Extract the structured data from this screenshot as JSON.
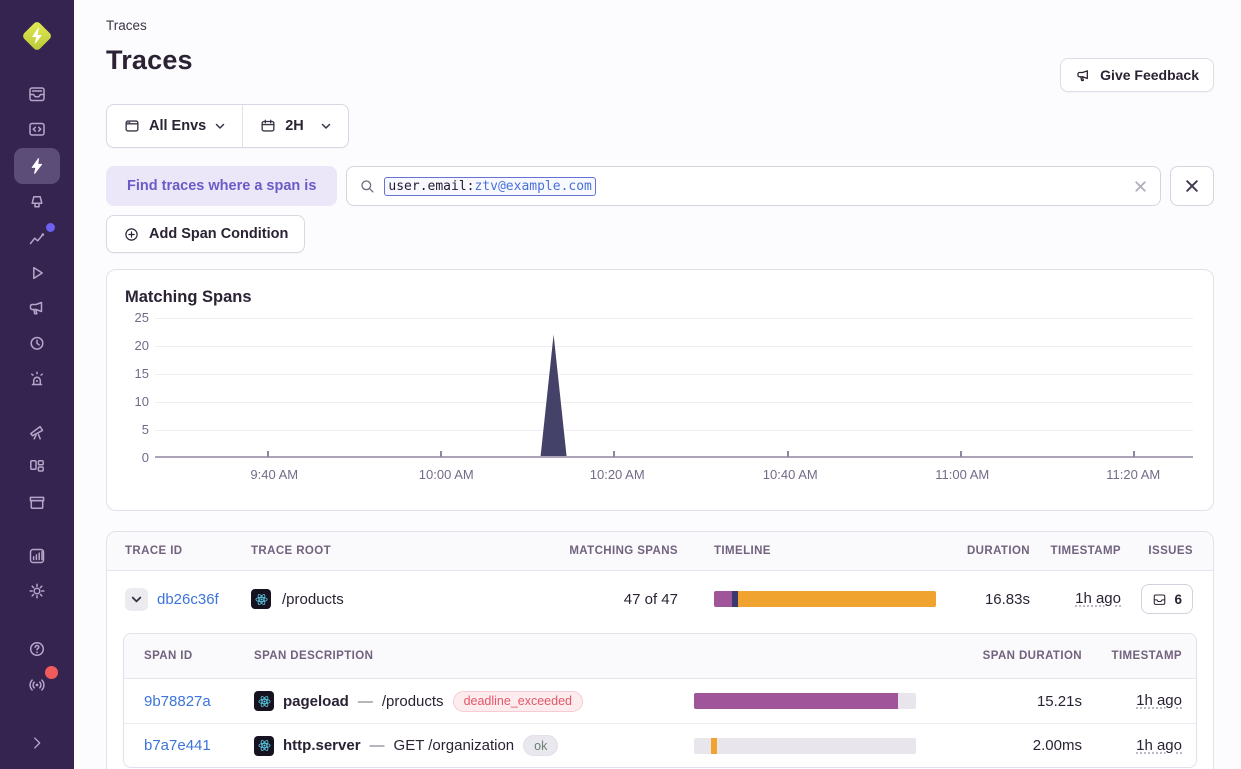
{
  "sidebar": {
    "logo_icon": "sentry-spotlight-logo",
    "accent_colors": {
      "background": "#362450",
      "active_item": "#5c4d78",
      "insights_dot": "#6d61f0",
      "whats_new_dot": "#f25b5b"
    },
    "items": [
      {
        "name": "issues"
      },
      {
        "name": "projects"
      },
      {
        "name": "traces",
        "active": true
      },
      {
        "name": "profiling"
      },
      {
        "name": "insights",
        "dot_color": "#6d61f0"
      },
      {
        "name": "replays"
      },
      {
        "name": "feedback"
      },
      {
        "name": "crons"
      },
      {
        "name": "alerts"
      },
      {
        "name": "discover"
      },
      {
        "name": "dashboards"
      },
      {
        "name": "releases"
      },
      {
        "name": "stats"
      },
      {
        "name": "settings"
      },
      {
        "name": "help"
      },
      {
        "name": "whats-new",
        "dot_color": "#f25b5b"
      },
      {
        "name": "collapse"
      }
    ]
  },
  "header": {
    "breadcrumb": "Traces",
    "title": "Traces",
    "feedback_button_label": "Give Feedback"
  },
  "filters": {
    "environment_label": "All Envs",
    "time_range_label": "2H"
  },
  "condition_bar": {
    "chip_label": "Find traces where a span is",
    "search": {
      "token_key": "user.email:",
      "token_value": "ztv@example.com"
    },
    "add_button_label": "Add Span Condition"
  },
  "chart_data": {
    "type": "area",
    "title": "Matching Spans",
    "ylim": [
      0,
      25
    ],
    "y_ticks": [
      0,
      5,
      10,
      15,
      20,
      25
    ],
    "grid": "horizontal",
    "legend": "none",
    "x_ticks": [
      {
        "label": "9:40 AM",
        "pos": 0.108
      },
      {
        "label": "10:00 AM",
        "pos": 0.275
      },
      {
        "label": "10:20 AM",
        "pos": 0.441
      },
      {
        "label": "10:40 AM",
        "pos": 0.609
      },
      {
        "label": "11:00 AM",
        "pos": 0.776
      },
      {
        "label": "11:20 AM",
        "pos": 0.942
      }
    ],
    "series": [
      {
        "name": "Matching Spans",
        "color": "#454269",
        "note": "flat at 0 across the 2h window with a single spike peaking at 22 around 10:13 AM",
        "points": [
          [
            0,
            0
          ],
          [
            0.3715,
            0
          ],
          [
            0.384,
            22
          ],
          [
            0.3965,
            0
          ],
          [
            1,
            0
          ]
        ]
      }
    ]
  },
  "trace_table": {
    "headers": [
      "TRACE ID",
      "TRACE ROOT",
      "MATCHING SPANS",
      "TIMELINE",
      "DURATION",
      "TIMESTAMP",
      "ISSUES"
    ],
    "rows": [
      {
        "trace_id": "db26c36f",
        "platform_icon": "react",
        "trace_root": "/products",
        "matching_spans": "47 of 47",
        "timeline_segments": [
          {
            "color": "#a0559a",
            "width": "8.1%"
          },
          {
            "color": "#3b3870",
            "width": "2.7%"
          },
          {
            "color": "#f0a32f",
            "width": "89.2%"
          }
        ],
        "duration": "16.83s",
        "timestamp": "1h ago",
        "issues_count": "6"
      }
    ]
  },
  "span_table": {
    "headers": [
      "SPAN ID",
      "SPAN DESCRIPTION",
      "SPAN DURATION",
      "TIMESTAMP"
    ],
    "rows": [
      {
        "span_id": "9b78827a",
        "platform_icon": "react",
        "op": "pageload",
        "separator": "—",
        "description": "/products",
        "status_badge": {
          "label": "deadline_exceeded",
          "type": "error"
        },
        "bar": {
          "left": "0%",
          "width": "92%",
          "color": "#a0559a"
        },
        "duration": "15.21s",
        "timestamp": "1h ago"
      },
      {
        "span_id": "b7a7e441",
        "platform_icon": "react",
        "op": "http.server",
        "separator": "—",
        "description": "GET /organization",
        "status_badge": {
          "label": "ok",
          "type": "ok"
        },
        "bar": {
          "left": "7.5%",
          "width": "2.8%",
          "color": "#f0a32f"
        },
        "duration": "2.00ms",
        "timestamp": "1h ago"
      }
    ]
  }
}
